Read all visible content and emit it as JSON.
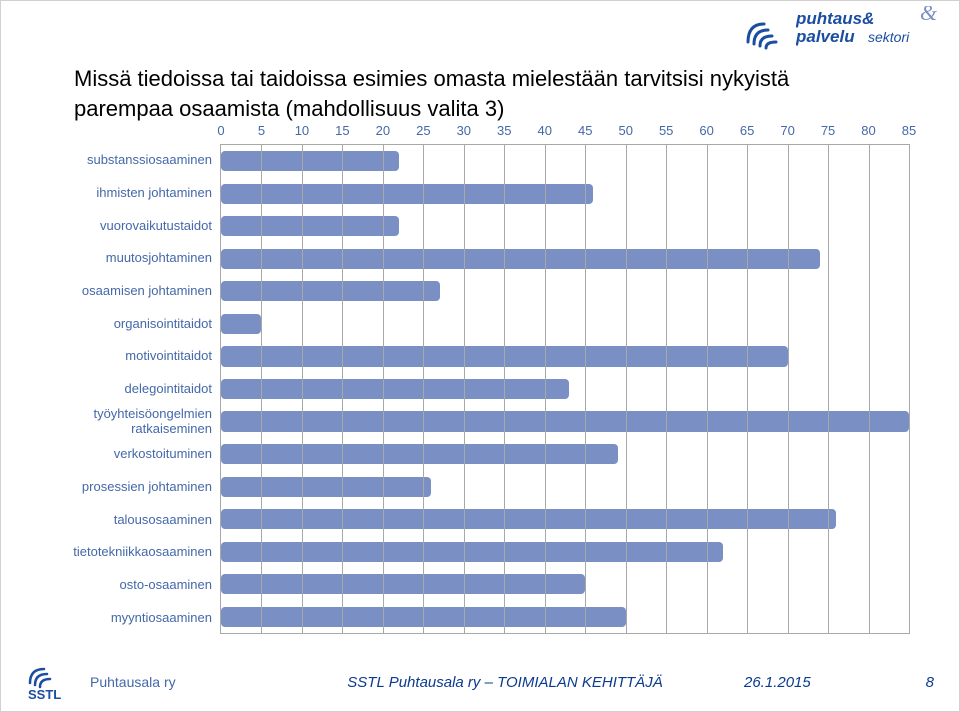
{
  "title": "Missä tiedoissa tai taidoissa esimies omasta mielestään tarvitsisi nykyistä parempaa osaamista (mahdollisuus valita 3)",
  "chart": {
    "type": "bar",
    "orientation": "horizontal",
    "xlim": [
      0,
      85
    ],
    "xtick_step": 5,
    "xtick_labels": [
      "0",
      "5",
      "10",
      "15",
      "20",
      "25",
      "30",
      "35",
      "40",
      "45",
      "50",
      "55",
      "60",
      "65",
      "70",
      "75",
      "80",
      "85"
    ],
    "label_color": "#4468a9",
    "label_fontsize": 13,
    "bar_color": "#7a90c4",
    "bar_border_radius": 4,
    "grid_color": "#a8a8a8",
    "background_color": "#ffffff",
    "categories": [
      "substanssiosaaminen",
      "ihmisten johtaminen",
      "vuorovaikutustaidot",
      "muutosjohtaminen",
      "osaamisen johtaminen",
      "organisointitaidot",
      "motivointitaidot",
      "delegointitaidot",
      "työyhteisöongelmien ratkaiseminen",
      "verkostoituminen",
      "prosessien johtaminen",
      "talousosaaminen",
      "tietotekniikkaosaaminen",
      "osto-osaaminen",
      "myyntiosaaminen"
    ],
    "values": [
      22,
      46,
      22,
      74,
      27,
      5,
      70,
      43,
      85,
      49,
      26,
      76,
      62,
      45,
      50
    ]
  },
  "footer": {
    "org_name": "Puhtausala ry",
    "center_text": "SSTL Puhtausala ry – TOIMIALAN KEHITTÄJÄ",
    "date": "26.1.2015",
    "page": "8"
  },
  "logos": {
    "top_right_title_a": "puhtaus&",
    "top_right_title_b": "palvelu",
    "top_right_title_c": "sektori",
    "bottom_left_badge": "SSTL"
  },
  "colors": {
    "brand_blue": "#1b4ea0",
    "brand_light": "#7a90c4",
    "text_blue": "#4468a9",
    "deep_blue": "#0a3b8f"
  }
}
